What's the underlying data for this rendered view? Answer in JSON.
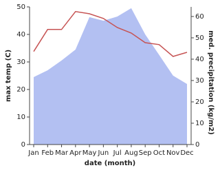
{
  "chart_data": {
    "type": "line-area",
    "xlabel": "date (month)",
    "ylabel": "max temp (C)",
    "y2label": "med. precipitation (kg/m2)",
    "categories": [
      "Jan",
      "Feb",
      "Mar",
      "Apr",
      "May",
      "Jun",
      "Jul",
      "Aug",
      "Sep",
      "Oct",
      "Nov",
      "Dec"
    ],
    "series": [
      {
        "color": "#b3c0f2",
        "axis": "y2",
        "values": [
          31.6,
          34.8,
          39.4,
          44.5,
          59.7,
          58,
          60,
          63.9,
          51.6,
          42,
          32.3,
          28.4
        ]
      },
      {
        "color": "#c65353",
        "values": [
          33.8,
          41.8,
          41.8,
          48.3,
          47.5,
          45.8,
          42.5,
          40.5,
          37,
          36.3,
          32,
          33.5
        ]
      }
    ],
    "ylim": [
      0,
      50
    ],
    "yticks": [
      0,
      10,
      20,
      30,
      40,
      50
    ],
    "y2lim": [
      0,
      64.5
    ],
    "y2ticks": [
      0,
      10,
      20,
      30,
      40,
      50,
      60
    ]
  }
}
